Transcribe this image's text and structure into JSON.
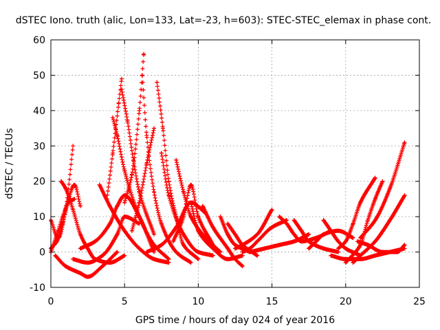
{
  "chart_data": {
    "type": "scatter",
    "title": "dSTEC Iono. truth (alic, Lon=133, Lat=-23, h=603): STEC-STEC_elemax in phase cont.",
    "xlabel": "GPS time / hours of day 024 of year 2016",
    "ylabel": "dSTEC  / TECUs",
    "xlim": [
      0,
      25
    ],
    "ylim": [
      -10,
      60
    ],
    "x_ticks": [
      0,
      5,
      10,
      15,
      20,
      25
    ],
    "y_ticks": [
      -10,
      0,
      10,
      20,
      30,
      40,
      50,
      60
    ],
    "x_tick_labels": [
      "0",
      "5",
      "10",
      "15",
      "20",
      "25"
    ],
    "y_tick_labels": [
      "-10",
      "0",
      "10",
      "20",
      "30",
      "40",
      "50",
      "60"
    ],
    "grid": true,
    "marker": "plus",
    "color": "#ff0000",
    "series": [
      {
        "x": [
          0.0,
          0.5,
          1.0,
          1.5
        ],
        "y": [
          9,
          4,
          12,
          30
        ]
      },
      {
        "x": [
          0.0,
          0.5,
          0.8,
          1.2,
          1.6
        ],
        "y": [
          0,
          6,
          10,
          14,
          15
        ]
      },
      {
        "x": [
          0.0,
          0.4,
          0.8,
          1.2,
          1.6,
          2.0
        ],
        "y": [
          1,
          3,
          8,
          15,
          19,
          13
        ]
      },
      {
        "x": [
          0.3,
          1.0,
          2.0,
          2.5,
          3.5,
          4.5
        ],
        "y": [
          -1,
          -4,
          -6,
          -7,
          -4,
          0
        ]
      },
      {
        "x": [
          0.7,
          1.0,
          1.5,
          2.0,
          2.5,
          3.0,
          4.0,
          5.0
        ],
        "y": [
          20,
          18,
          12,
          5,
          1,
          -2,
          -3,
          -1
        ]
      },
      {
        "x": [
          1.5,
          2.5,
          3.5,
          4.5,
          5.0,
          6.0
        ],
        "y": [
          -2,
          -3,
          -1,
          5,
          10,
          8
        ]
      },
      {
        "x": [
          2.0,
          3.0,
          4.0,
          4.5,
          5.0,
          6.0,
          7.0
        ],
        "y": [
          1,
          3,
          8,
          13,
          16,
          10,
          0
        ]
      },
      {
        "x": [
          3.3,
          4.0,
          5.0,
          6.0,
          7.0,
          8.0
        ],
        "y": [
          19,
          13,
          6,
          1,
          -2,
          -3
        ]
      },
      {
        "x": [
          3.8,
          4.2,
          4.6,
          4.8
        ],
        "y": [
          15,
          28,
          42,
          49
        ]
      },
      {
        "x": [
          4.2,
          4.5,
          5.0,
          6.0,
          7.0,
          8.0
        ],
        "y": [
          38,
          33,
          23,
          10,
          2,
          -2
        ]
      },
      {
        "x": [
          4.8,
          5.2,
          5.6,
          6.0,
          7.0
        ],
        "y": [
          46,
          37,
          26,
          17,
          5
        ]
      },
      {
        "x": [
          5.0,
          5.5,
          6.0,
          6.3
        ],
        "y": [
          14,
          22,
          40,
          56
        ]
      },
      {
        "x": [
          6.2,
          6.5,
          7.0,
          7.5,
          8.5,
          9.5
        ],
        "y": [
          50,
          33,
          17,
          8,
          0,
          -3
        ]
      },
      {
        "x": [
          5.5,
          6.0,
          6.5,
          7.0
        ],
        "y": [
          6,
          14,
          25,
          35
        ]
      },
      {
        "x": [
          7.2,
          7.6,
          8.0,
          8.5,
          9.0,
          10.0
        ],
        "y": [
          48,
          35,
          20,
          10,
          2,
          -2
        ]
      },
      {
        "x": [
          7.5,
          8.0,
          9.0,
          10.0,
          11.0
        ],
        "y": [
          28,
          16,
          5,
          0,
          -1
        ]
      },
      {
        "x": [
          6.5,
          7.5,
          8.5,
          9.5,
          10.5
        ],
        "y": [
          0,
          2,
          7,
          14,
          11
        ]
      },
      {
        "x": [
          8.3,
          9.0,
          9.5,
          10.0,
          11.0
        ],
        "y": [
          3,
          10,
          19,
          10,
          2
        ]
      },
      {
        "x": [
          8.5,
          9.0,
          9.5,
          10.5,
          11.5
        ],
        "y": [
          26,
          17,
          10,
          4,
          0
        ]
      },
      {
        "x": [
          9.5,
          10.0,
          11.0,
          12.0,
          13.0
        ],
        "y": [
          14,
          6,
          1,
          -2,
          -1
        ]
      },
      {
        "x": [
          10.3,
          11.0,
          12.0,
          12.5,
          13.0
        ],
        "y": [
          13,
          7,
          1,
          -2,
          -4
        ]
      },
      {
        "x": [
          11.5,
          12.0,
          12.5,
          13.5
        ],
        "y": [
          10,
          5,
          2,
          0
        ]
      },
      {
        "x": [
          12.0,
          12.5,
          13.0,
          14.0
        ],
        "y": [
          8,
          5,
          2,
          -1
        ]
      },
      {
        "x": [
          12.5,
          13.0,
          14.0,
          15.0
        ],
        "y": [
          1,
          2,
          5,
          12
        ]
      },
      {
        "x": [
          13.0,
          13.5,
          14.0,
          15.0,
          16.0
        ],
        "y": [
          0,
          1,
          3,
          7,
          9
        ]
      },
      {
        "x": [
          13.5,
          14.5,
          15.5,
          16.5,
          17.5
        ],
        "y": [
          0,
          1,
          2,
          3,
          5
        ]
      },
      {
        "x": [
          15.5,
          16.0,
          16.5,
          17.0,
          18.0,
          19.0
        ],
        "y": [
          10,
          8,
          5,
          3,
          4,
          6
        ]
      },
      {
        "x": [
          16.5,
          17.0,
          17.5,
          18.5,
          19.5
        ],
        "y": [
          9,
          6,
          3,
          1,
          0
        ]
      },
      {
        "x": [
          17.5,
          18.0,
          18.5,
          19.5,
          20.5
        ],
        "y": [
          1,
          3,
          5,
          6,
          4
        ]
      },
      {
        "x": [
          18.5,
          19.0,
          19.5,
          20.0,
          21.0
        ],
        "y": [
          9,
          6,
          3,
          1,
          -1
        ]
      },
      {
        "x": [
          19.5,
          20.0,
          20.5,
          21.0,
          22.0
        ],
        "y": [
          1,
          3,
          8,
          14,
          21
        ]
      },
      {
        "x": [
          20.0,
          21.0,
          21.5,
          22.0,
          22.5
        ],
        "y": [
          -3,
          2,
          9,
          15,
          20
        ]
      },
      {
        "x": [
          20.5,
          21.0,
          22.0,
          23.0,
          24.0
        ],
        "y": [
          -3,
          -1,
          3,
          9,
          16
        ]
      },
      {
        "x": [
          21.0,
          22.0,
          23.0,
          24.0
        ],
        "y": [
          4,
          9,
          18,
          31
        ]
      },
      {
        "x": [
          20.8,
          21.5,
          22.5,
          23.5,
          24.0
        ],
        "y": [
          3,
          2,
          0,
          0,
          2
        ]
      },
      {
        "x": [
          19.0,
          20.0,
          21.0,
          22.0,
          23.0,
          24.0
        ],
        "y": [
          -1,
          -2,
          -2,
          -1,
          0,
          1
        ]
      }
    ]
  }
}
